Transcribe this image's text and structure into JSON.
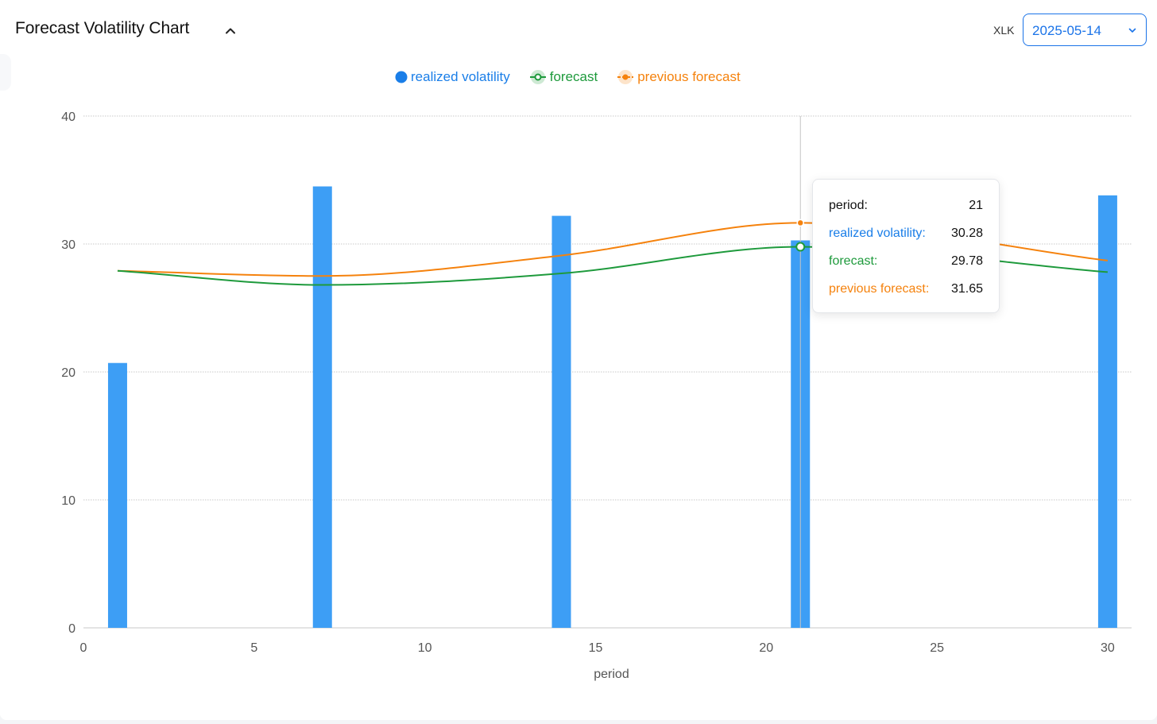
{
  "header": {
    "title": "Forecast Volatility Chart",
    "ticker": "XLK",
    "date_value": "2025-05-14"
  },
  "colors": {
    "realized": "#3d9ef5",
    "realized_text": "#1a7ee8",
    "forecast": "#1e9a3c",
    "previous": "#f5820d",
    "grid": "#c8c8c8",
    "axis_text": "#555555"
  },
  "tooltip": {
    "rows": [
      {
        "label": "period:",
        "value": "21"
      },
      {
        "label": "realized volatility:",
        "value": "30.28"
      },
      {
        "label": "forecast:",
        "value": "29.78"
      },
      {
        "label": "previous forecast:",
        "value": "31.65"
      }
    ]
  },
  "chart_data": {
    "type": "bar",
    "xlabel": "period",
    "ylabel": "",
    "xlim": [
      0,
      30.7
    ],
    "ylim": [
      0,
      40
    ],
    "x_ticks": [
      0,
      5,
      10,
      15,
      20,
      25,
      30
    ],
    "y_ticks": [
      0,
      10,
      20,
      30,
      40
    ],
    "grid": true,
    "legend_position": "top-center",
    "series": [
      {
        "name": "realized volatility",
        "kind": "bar",
        "x": [
          1,
          7,
          14,
          21,
          30
        ],
        "values": [
          20.7,
          34.5,
          32.2,
          30.28,
          33.8
        ]
      },
      {
        "name": "forecast",
        "kind": "line",
        "x": [
          1,
          7,
          14,
          21,
          30
        ],
        "values": [
          27.9,
          26.8,
          27.7,
          29.78,
          27.8
        ]
      },
      {
        "name": "previous forecast",
        "kind": "line",
        "x": [
          1,
          7,
          14,
          21,
          30
        ],
        "values": [
          27.9,
          27.5,
          29.1,
          31.65,
          28.7
        ]
      }
    ],
    "highlight_x": 21
  }
}
